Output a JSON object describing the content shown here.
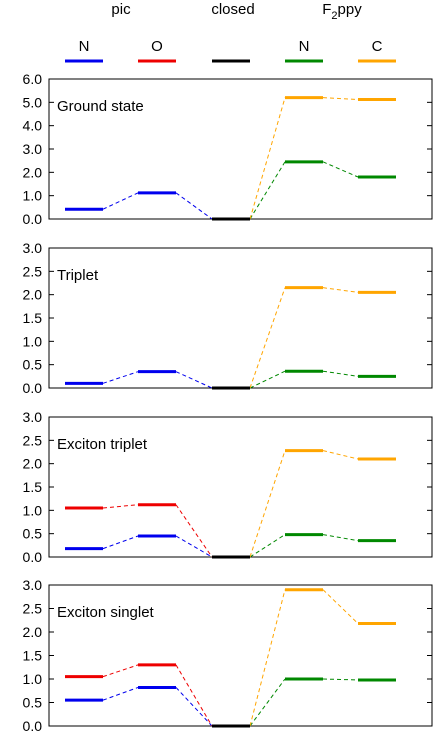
{
  "legend": {
    "groups": [
      {
        "label": "pic",
        "subscript": ""
      },
      {
        "label": "closed",
        "subscript": ""
      },
      {
        "label": "F",
        "subscript": "2",
        "suffix": "ppy"
      }
    ],
    "entries": [
      {
        "label": "N",
        "color": "#0000ee"
      },
      {
        "label": "O",
        "color": "#ee0000"
      },
      {
        "label": "",
        "color": "#000000"
      },
      {
        "label": "N",
        "color": "#008800"
      },
      {
        "label": "C",
        "color": "#ffa500"
      }
    ]
  },
  "chart_data": [
    {
      "type": "line",
      "title": "Ground state",
      "ylim": [
        0,
        6
      ],
      "yticks": [
        "0.0",
        "1.0",
        "2.0",
        "3.0",
        "4.0",
        "5.0",
        "6.0"
      ],
      "ytick_values": [
        0,
        1,
        2,
        3,
        4,
        5,
        6
      ],
      "x": [
        1,
        2,
        3,
        4,
        5
      ],
      "series": [
        {
          "label": "pic N",
          "color": "#0000ee",
          "points": [
            [
              1,
              0.42
            ],
            [
              2,
              1.12
            ],
            [
              3,
              0.0
            ]
          ]
        },
        {
          "label": "pic O",
          "color": "#ee0000",
          "points": []
        },
        {
          "label": "closed",
          "color": "#000000",
          "points": [
            [
              3,
              0.0
            ]
          ]
        },
        {
          "label": "F2ppy N",
          "color": "#008800",
          "points": [
            [
              3,
              0.0
            ],
            [
              4,
              2.45
            ],
            [
              5,
              1.8
            ]
          ]
        },
        {
          "label": "F2ppy C",
          "color": "#ffa500",
          "points": [
            [
              3,
              0.0
            ],
            [
              4,
              5.2
            ],
            [
              5,
              5.12
            ]
          ]
        }
      ]
    },
    {
      "type": "line",
      "title": "Triplet",
      "ylim": [
        0,
        3
      ],
      "yticks": [
        "0.0",
        "0.5",
        "1.0",
        "1.5",
        "2.0",
        "2.5",
        "3.0"
      ],
      "ytick_values": [
        0,
        0.5,
        1,
        1.5,
        2,
        2.5,
        3
      ],
      "x": [
        1,
        2,
        3,
        4,
        5
      ],
      "series": [
        {
          "label": "pic N",
          "color": "#0000ee",
          "points": [
            [
              1,
              0.1
            ],
            [
              2,
              0.35
            ],
            [
              3,
              0.0
            ]
          ]
        },
        {
          "label": "pic O",
          "color": "#ee0000",
          "points": []
        },
        {
          "label": "closed",
          "color": "#000000",
          "points": [
            [
              3,
              0.0
            ]
          ]
        },
        {
          "label": "F2ppy N",
          "color": "#008800",
          "points": [
            [
              3,
              0.0
            ],
            [
              4,
              0.36
            ],
            [
              5,
              0.25
            ]
          ]
        },
        {
          "label": "F2ppy C",
          "color": "#ffa500",
          "points": [
            [
              3,
              0.0
            ],
            [
              4,
              2.15
            ],
            [
              5,
              2.05
            ]
          ]
        }
      ]
    },
    {
      "type": "line",
      "title": "Exciton triplet",
      "ylim": [
        0,
        3
      ],
      "yticks": [
        "0.0",
        "0.5",
        "1.0",
        "1.5",
        "2.0",
        "2.5",
        "3.0"
      ],
      "ytick_values": [
        0,
        0.5,
        1,
        1.5,
        2,
        2.5,
        3
      ],
      "x": [
        1,
        2,
        3,
        4,
        5
      ],
      "series": [
        {
          "label": "pic N",
          "color": "#0000ee",
          "points": [
            [
              1,
              0.18
            ],
            [
              2,
              0.45
            ],
            [
              3,
              0.0
            ]
          ]
        },
        {
          "label": "pic O",
          "color": "#ee0000",
          "points": [
            [
              1,
              1.05
            ],
            [
              2,
              1.12
            ],
            [
              3,
              0.0
            ]
          ]
        },
        {
          "label": "closed",
          "color": "#000000",
          "points": [
            [
              3,
              0.0
            ]
          ]
        },
        {
          "label": "F2ppy N",
          "color": "#008800",
          "points": [
            [
              3,
              0.0
            ],
            [
              4,
              0.48
            ],
            [
              5,
              0.35
            ]
          ]
        },
        {
          "label": "F2ppy C",
          "color": "#ffa500",
          "points": [
            [
              3,
              0.0
            ],
            [
              4,
              2.28
            ],
            [
              5,
              2.1
            ]
          ]
        }
      ]
    },
    {
      "type": "line",
      "title": "Exciton singlet",
      "ylim": [
        0,
        3
      ],
      "yticks": [
        "0.0",
        "0.5",
        "1.0",
        "1.5",
        "2.0",
        "2.5",
        "3.0"
      ],
      "ytick_values": [
        0,
        0.5,
        1,
        1.5,
        2,
        2.5,
        3
      ],
      "x": [
        1,
        2,
        3,
        4,
        5
      ],
      "series": [
        {
          "label": "pic N",
          "color": "#0000ee",
          "points": [
            [
              1,
              0.55
            ],
            [
              2,
              0.82
            ],
            [
              3,
              0.0
            ]
          ]
        },
        {
          "label": "pic O",
          "color": "#ee0000",
          "points": [
            [
              1,
              1.05
            ],
            [
              2,
              1.3
            ],
            [
              3,
              0.0
            ]
          ]
        },
        {
          "label": "closed",
          "color": "#000000",
          "points": [
            [
              3,
              0.0
            ]
          ]
        },
        {
          "label": "F2ppy N",
          "color": "#008800",
          "points": [
            [
              3,
              0.0
            ],
            [
              4,
              1.0
            ],
            [
              5,
              0.98
            ]
          ]
        },
        {
          "label": "F2ppy C",
          "color": "#ffa500",
          "points": [
            [
              3,
              0.0
            ],
            [
              4,
              2.9
            ],
            [
              5,
              2.18
            ]
          ]
        }
      ]
    }
  ]
}
